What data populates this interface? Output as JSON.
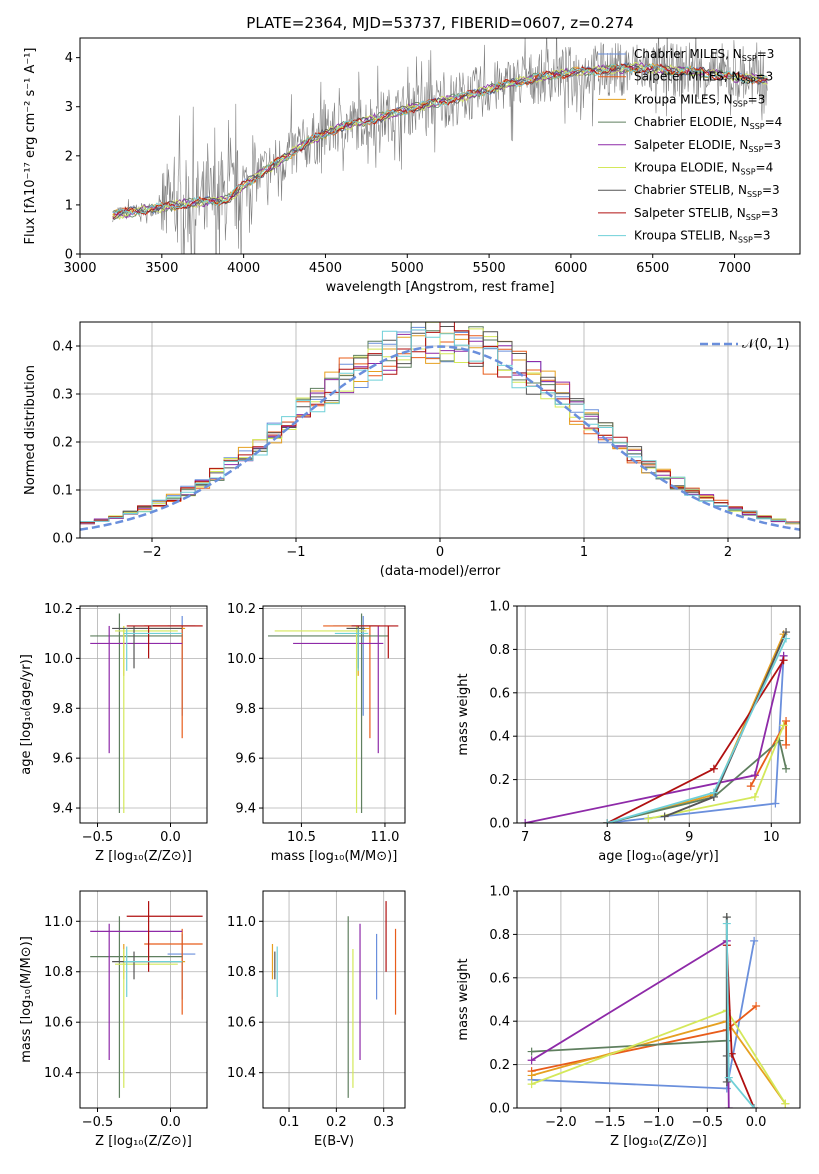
{
  "colors": {
    "chabrier_miles": "#6a8fdc",
    "salpeter_miles": "#e85c1a",
    "kroupa_miles": "#e6a020",
    "chabrier_elodie": "#5f7f5f",
    "salpeter_elodie": "#8e2aa8",
    "kroupa_elodie": "#d4e85a",
    "chabrier_stelib": "#555555",
    "salpeter_stelib": "#b01010",
    "kroupa_stelib": "#6fd0d8",
    "gauss": "#6a8fdc",
    "grid": "#b0b0b0",
    "data": "#808080"
  },
  "chart_data": [
    {
      "id": "spectrum",
      "type": "line",
      "title": "PLATE=2364, MJD=53737, FIBERID=0607, z=0.274",
      "xlabel": "wavelength [Angstrom, rest frame]",
      "ylabel": "Flux [fλ10⁻¹⁷ erg cm⁻² s⁻¹ A⁻¹]",
      "xlim": [
        3000,
        7400
      ],
      "ylim": [
        0,
        4.4
      ],
      "xticks": [
        "3000",
        "3500",
        "4000",
        "4500",
        "5000",
        "5500",
        "6000",
        "6500",
        "7000"
      ],
      "yticks": [
        "0",
        "1",
        "2",
        "3",
        "4"
      ],
      "legend_position": "right",
      "series": [
        {
          "name": "Chabrier MILES, N_SSP=3",
          "label": "Chabrier MILES, N",
          "sub": "SSP",
          "suffix": "=3"
        },
        {
          "name": "Salpeter MILES, N_SSP=3",
          "label": "Salpeter MILES, N",
          "sub": "SSP",
          "suffix": "=3"
        },
        {
          "name": "Kroupa MILES, N_SSP=3",
          "label": "Kroupa MILES, N",
          "sub": "SSP",
          "suffix": "=3"
        },
        {
          "name": "Chabrier ELODIE, N_SSP=4",
          "label": "Chabrier ELODIE, N",
          "sub": "SSP",
          "suffix": "=4"
        },
        {
          "name": "Salpeter ELODIE, N_SSP=3",
          "label": "Salpeter ELODIE, N",
          "sub": "SSP",
          "suffix": "=3"
        },
        {
          "name": "Kroupa ELODIE, N_SSP=4",
          "label": "Kroupa ELODIE, N",
          "sub": "SSP",
          "suffix": "=4"
        },
        {
          "name": "Chabrier STELIB, N_SSP=3",
          "label": "Chabrier STELIB, N",
          "sub": "SSP",
          "suffix": "=3"
        },
        {
          "name": "Salpeter STELIB, N_SSP=3",
          "label": "Salpeter STELIB, N",
          "sub": "SSP",
          "suffix": "=3"
        },
        {
          "name": "Kroupa STELIB, N_SSP=3",
          "label": "Kroupa STELIB, N",
          "sub": "SSP",
          "suffix": "=3"
        }
      ],
      "continuum": {
        "x": [
          3200,
          3500,
          3700,
          3900,
          4000,
          4200,
          4400,
          4600,
          4800,
          5000,
          5200,
          5400,
          5600,
          5800,
          6000,
          6200,
          6400,
          6600,
          6800,
          7000,
          7200
        ],
        "y": [
          0.8,
          0.95,
          1.05,
          1.1,
          1.4,
          1.85,
          2.3,
          2.6,
          2.75,
          2.95,
          3.1,
          3.25,
          3.45,
          3.6,
          3.7,
          3.75,
          3.8,
          3.75,
          3.7,
          3.6,
          3.55
        ]
      }
    },
    {
      "id": "residuals",
      "type": "line",
      "xlabel": "(data-model)/error",
      "ylabel": "Normed distribution",
      "xlim": [
        -2.5,
        2.5
      ],
      "ylim": [
        0,
        0.45
      ],
      "xticks": [
        "−2",
        "−1",
        "0",
        "1",
        "2"
      ],
      "yticks": [
        "0.0",
        "0.1",
        "0.2",
        "0.3",
        "0.4"
      ],
      "legend": "𝒩(0, 1)",
      "gaussian": {
        "mean": 0,
        "sigma": 1
      }
    },
    {
      "id": "age_vs_Z",
      "type": "scatter",
      "xlabel": "Z [log₁₀(Z/Z⊙)]",
      "ylabel": "age  [log₁₀(age/yr)]",
      "xlim": [
        -0.62,
        0.25
      ],
      "ylim": [
        9.34,
        10.21
      ],
      "xticks": [
        "−0.5",
        "0.0"
      ],
      "yticks": [
        "9.4",
        "9.6",
        "9.8",
        "10.0",
        "10.2"
      ]
    },
    {
      "id": "age_vs_mass",
      "type": "scatter",
      "xlabel": "mass [log₁₀(M/M⊙)]",
      "ylabel": "",
      "xlim": [
        10.27,
        11.12
      ],
      "ylim": [
        9.34,
        10.21
      ],
      "xticks": [
        "10.5",
        "11.0"
      ],
      "yticks": [
        "9.4",
        "9.6",
        "9.8",
        "10.0",
        "10.2"
      ]
    },
    {
      "id": "weight_vs_age",
      "type": "line",
      "xlabel": "age  [log₁₀(age/yr)]",
      "ylabel": "mass weight",
      "xlim": [
        6.9,
        10.35
      ],
      "ylim": [
        0,
        1.0
      ],
      "xticks": [
        "7",
        "8",
        "9",
        "10"
      ],
      "yticks": [
        "0.0",
        "0.2",
        "0.4",
        "0.6",
        "0.8",
        "1.0"
      ]
    },
    {
      "id": "mass_vs_Z",
      "type": "scatter",
      "xlabel": "Z [log₁₀(Z/Z⊙)]",
      "ylabel": "mass [log₁₀(M/M⊙)]",
      "xlim": [
        -0.62,
        0.25
      ],
      "ylim": [
        10.26,
        11.12
      ],
      "xticks": [
        "−0.5",
        "0.0"
      ],
      "yticks": [
        "10.4",
        "10.6",
        "10.8",
        "11.0"
      ]
    },
    {
      "id": "mass_vs_ebv",
      "type": "scatter",
      "xlabel": "E(B-V)",
      "ylabel": "",
      "xlim": [
        0.045,
        0.345
      ],
      "ylim": [
        10.26,
        11.12
      ],
      "xticks": [
        "0.1",
        "0.2",
        "0.3"
      ],
      "yticks": [
        "10.4",
        "10.6",
        "10.8",
        "11.0"
      ]
    },
    {
      "id": "weight_vs_Z",
      "type": "line",
      "xlabel": "Z [log₁₀(Z/Z⊙)]",
      "ylabel": "mass weight",
      "xlim": [
        -2.45,
        0.45
      ],
      "ylim": [
        0,
        1.0
      ],
      "xticks": [
        "−2.0",
        "−1.5",
        "−1.0",
        "−0.5",
        "0.0"
      ],
      "yticks": [
        "0.0",
        "0.2",
        "0.4",
        "0.6",
        "0.8",
        "1.0"
      ]
    }
  ]
}
